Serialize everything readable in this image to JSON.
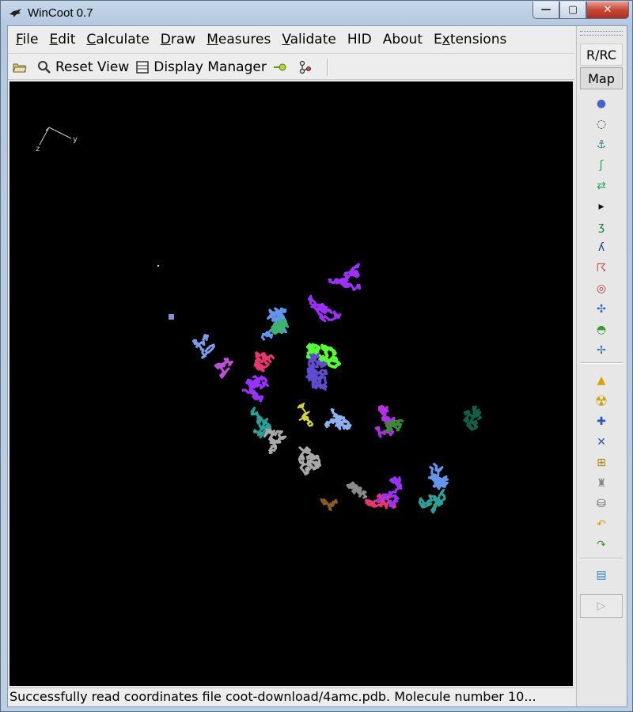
{
  "window": {
    "title": "WinCoot 0.7",
    "close_label": "✕",
    "minimize_label": "—",
    "maximize_label": "▢"
  },
  "menu": [
    {
      "pre": "",
      "acc": "F",
      "post": "ile"
    },
    {
      "pre": "",
      "acc": "E",
      "post": "dit"
    },
    {
      "pre": "",
      "acc": "C",
      "post": "alculate"
    },
    {
      "pre": "",
      "acc": "D",
      "post": "raw"
    },
    {
      "pre": "",
      "acc": "M",
      "post": "easures"
    },
    {
      "pre": "",
      "acc": "V",
      "post": "alidate"
    },
    {
      "pre": "HID",
      "acc": "",
      "post": ""
    },
    {
      "pre": "About",
      "acc": "",
      "post": ""
    },
    {
      "pre": "E",
      "acc": "x",
      "post": "tensions"
    }
  ],
  "toolbar": {
    "open_icon": "folder-open-icon",
    "reset_view_label": "Reset View",
    "display_manager_label": "Display Manager",
    "go_to_atom_icon": "go-to-atom-icon",
    "model_toolbar_icon": "residue-info-icon"
  },
  "canvas": {
    "background": "#000000",
    "axes": {
      "y_label": "y",
      "z_label": "z"
    }
  },
  "status": {
    "message": "Successfully read coordinates file coot-download/4amc.pdb.  Molecule number 10..."
  },
  "side_panel": {
    "rrc_label": "R/RC",
    "map_label": "Map",
    "icons": [
      "refine-sphere-icon",
      "regularize-icon",
      "rigid-body-icon",
      "rotamer-icon",
      "pepflip-icon",
      "more-arrow-icon",
      "add-alt-conf-icon",
      "mutate-icon",
      "auto-fit-rotamer-icon",
      "torsion-edit-icon",
      "rotate-translate-icon",
      "side-chain-icon",
      "chain-refine-icon",
      "add-atom-icon",
      "radioactive-icon",
      "place-helix-icon",
      "delete-atom-icon",
      "add-terminal-residue-icon",
      "clear-pending-icon",
      "delete-icon",
      "undo-icon",
      "redo-icon",
      "flag-icon"
    ],
    "play_label": "▷"
  },
  "colors": {
    "purple": "#8a2be2",
    "violet": "#9b30ff",
    "green": "#55ff33",
    "cornflower": "#6495ed",
    "pink": "#e9366f",
    "teal": "#2aa198",
    "gray": "#a8a8a8",
    "brown": "#8b5a1e",
    "darkgreen": "#0f5e45",
    "navy": "#5f4bd0"
  }
}
